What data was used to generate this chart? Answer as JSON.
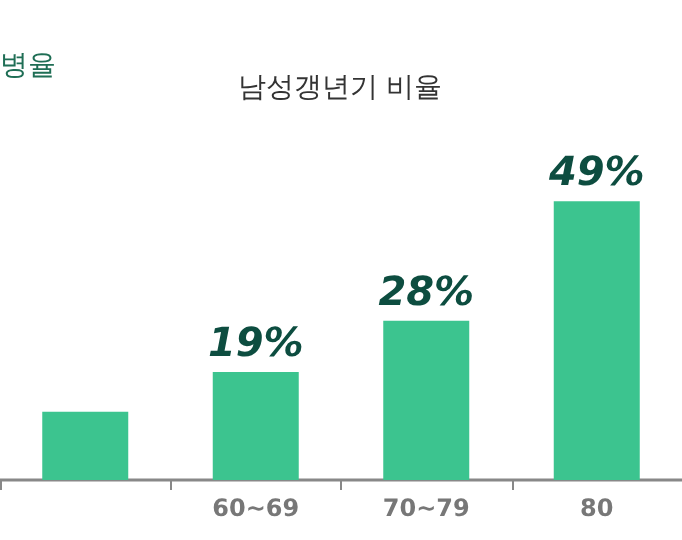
{
  "chart_data": {
    "type": "bar",
    "title": "남성갱년기 비율",
    "annotations": [
      "병율"
    ],
    "categories": [
      null,
      "60~69",
      "70~79",
      "80"
    ],
    "values": [
      12,
      19,
      28,
      49
    ],
    "value_labels": [
      null,
      "19%",
      "28%",
      "49%"
    ],
    "color": "#3cc48f"
  }
}
